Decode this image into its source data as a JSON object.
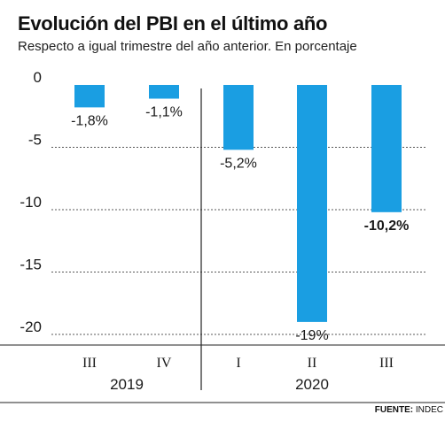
{
  "title": "Evolución del PBI en el último año",
  "subtitle": "Respecto a igual trimestre del año anterior. En porcentaje",
  "source": {
    "label": "FUENTE:",
    "text": "INDEC"
  },
  "colors": {
    "bar": "#1a9ee2",
    "grid": "#222222",
    "text": "#1a1a1a"
  },
  "chart_data": {
    "type": "bar",
    "categories": [
      "III",
      "IV",
      "I",
      "II",
      "III"
    ],
    "groups": [
      {
        "label": "2019",
        "categories": [
          "III",
          "IV"
        ]
      },
      {
        "label": "2020",
        "categories": [
          "I",
          "II",
          "III"
        ]
      }
    ],
    "values": [
      -1.8,
      -1.1,
      -5.2,
      -19,
      -10.2
    ],
    "value_labels": [
      "-1,8%",
      "-1,1%",
      "-5,2%",
      "-19%",
      "-10,2%"
    ],
    "highlighted": [
      false,
      false,
      false,
      false,
      true
    ],
    "yticks": [
      0,
      -5,
      -10,
      -15,
      -20
    ],
    "ytick_labels": [
      "0",
      "-5",
      "-10",
      "-15",
      "-20"
    ],
    "ylim": [
      -20,
      0
    ],
    "grid": "horizontal dashed",
    "title": "Evolución del PBI en el último año",
    "subtitle": "Respecto a igual trimestre del año anterior. En porcentaje"
  }
}
